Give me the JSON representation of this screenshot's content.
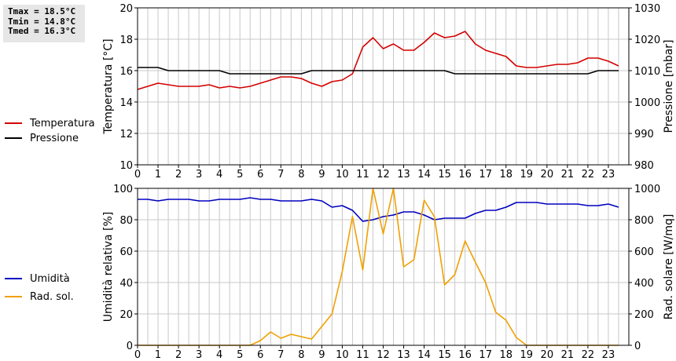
{
  "stats": {
    "tmax": "Tmax = 18.5°C",
    "tmin": "Tmin = 14.8°C",
    "tmed": "Tmed = 16.3°C"
  },
  "colors": {
    "temperature": "#d40000",
    "pressure": "#000000",
    "humidity": "#0000c0",
    "radiation": "#f0a000",
    "grid": "#c8c8c8"
  },
  "chart_data": [
    {
      "type": "line",
      "x_ticks": [
        "0",
        "1",
        "2",
        "3",
        "4",
        "5",
        "6",
        "7",
        "8",
        "9",
        "10",
        "11",
        "12",
        "13",
        "14",
        "15",
        "16",
        "17",
        "18",
        "19",
        "20",
        "21",
        "22",
        "23"
      ],
      "xlim": [
        0,
        24
      ],
      "ylabel_left": "Temperatura [°C]",
      "ylabel_right": "Pressione [mbar]",
      "ylim_left": [
        10,
        20
      ],
      "yticks_left": [
        "10",
        "12",
        "14",
        "16",
        "18",
        "20"
      ],
      "ylim_right": [
        980,
        1030
      ],
      "yticks_right": [
        "980",
        "990",
        "1000",
        "1010",
        "1020",
        "1030"
      ],
      "grid": true,
      "legend": [
        "Temperatura",
        "Pressione"
      ],
      "series": [
        {
          "name": "Temperatura",
          "axis": "left",
          "color": "#d40000",
          "x": [
            0,
            0.5,
            1,
            1.5,
            2,
            2.5,
            3,
            3.5,
            4,
            4.5,
            5,
            5.5,
            6,
            6.5,
            7,
            7.5,
            8,
            8.5,
            9,
            9.5,
            10,
            10.5,
            11,
            11.5,
            12,
            12.5,
            13,
            13.5,
            14,
            14.5,
            15,
            15.5,
            16,
            16.5,
            17,
            17.5,
            18,
            18.5,
            19,
            19.5,
            20,
            20.5,
            21,
            21.5,
            22,
            22.5,
            23,
            23.5
          ],
          "values": [
            14.8,
            15.0,
            15.2,
            15.1,
            15.0,
            15.0,
            15.0,
            15.1,
            14.9,
            15.0,
            14.9,
            15.0,
            15.2,
            15.4,
            15.6,
            15.6,
            15.5,
            15.2,
            15.0,
            15.3,
            15.4,
            15.8,
            17.5,
            18.1,
            17.4,
            17.7,
            17.3,
            17.3,
            17.8,
            18.4,
            18.1,
            18.2,
            18.5,
            17.7,
            17.3,
            17.1,
            16.9,
            16.3,
            16.2,
            16.2,
            16.3,
            16.4,
            16.4,
            16.5,
            16.8,
            16.8,
            16.6,
            16.3
          ]
        },
        {
          "name": "Pressione",
          "axis": "right",
          "color": "#000000",
          "x": [
            0,
            1,
            1.5,
            4,
            4.5,
            8,
            8.5,
            15,
            15.5,
            22,
            22.5,
            23.5
          ],
          "values": [
            1011,
            1011,
            1010,
            1010,
            1009,
            1009,
            1010,
            1010,
            1009,
            1009,
            1010,
            1010
          ]
        }
      ]
    },
    {
      "type": "line",
      "x_ticks": [
        "0",
        "1",
        "2",
        "3",
        "4",
        "5",
        "6",
        "7",
        "8",
        "9",
        "10",
        "11",
        "12",
        "13",
        "14",
        "15",
        "16",
        "17",
        "18",
        "19",
        "20",
        "21",
        "22",
        "23"
      ],
      "xlim": [
        0,
        24
      ],
      "ylabel_left": "Umidità relativa [%]",
      "ylabel_right": "Rad. solare [W/mq]",
      "ylim_left": [
        0,
        100
      ],
      "yticks_left": [
        "0",
        "20",
        "40",
        "60",
        "80",
        "100"
      ],
      "ylim_right": [
        0,
        1000
      ],
      "yticks_right": [
        "0",
        "200",
        "400",
        "600",
        "800",
        "1000"
      ],
      "grid": true,
      "legend": [
        "Umidità",
        "Rad. sol."
      ],
      "series": [
        {
          "name": "Umidità",
          "axis": "left",
          "color": "#0000c0",
          "x": [
            0,
            0.5,
            1,
            1.5,
            2,
            2.5,
            3,
            3.5,
            4,
            4.5,
            5,
            5.5,
            6,
            6.5,
            7,
            7.5,
            8,
            8.5,
            9,
            9.5,
            10,
            10.5,
            11,
            11.5,
            12,
            12.5,
            13,
            13.5,
            14,
            14.5,
            15,
            15.5,
            16,
            16.5,
            17,
            17.5,
            18,
            18.5,
            19,
            19.5,
            20,
            20.5,
            21,
            21.5,
            22,
            22.5,
            23,
            23.5
          ],
          "values": [
            93,
            93,
            92,
            93,
            93,
            93,
            92,
            92,
            93,
            93,
            93,
            94,
            93,
            93,
            92,
            92,
            92,
            93,
            92,
            88,
            89,
            86,
            79,
            80,
            82,
            83,
            85,
            85,
            83,
            80,
            81,
            81,
            81,
            84,
            86,
            86,
            88,
            91,
            91,
            91,
            90,
            90,
            90,
            90,
            89,
            89,
            90,
            88
          ]
        },
        {
          "name": "Rad. sol.",
          "axis": "right",
          "color": "#f0a000",
          "x": [
            0,
            0.5,
            1,
            1.5,
            2,
            2.5,
            3,
            3.5,
            4,
            4.5,
            5,
            5.5,
            6,
            6.5,
            7,
            7.5,
            8,
            8.5,
            9,
            9.5,
            10,
            10.5,
            11,
            11.5,
            12,
            12.5,
            13,
            13.5,
            14,
            14.5,
            15,
            15.5,
            16,
            16.5,
            17,
            17.5,
            18,
            18.5,
            19,
            19.5,
            20,
            20.5,
            21,
            21.5,
            22,
            22.5,
            23,
            23.5
          ],
          "values": [
            0,
            0,
            0,
            0,
            0,
            0,
            0,
            0,
            0,
            0,
            0,
            0,
            30,
            85,
            45,
            70,
            55,
            40,
            120,
            200,
            470,
            820,
            480,
            1010,
            710,
            1010,
            500,
            545,
            925,
            820,
            385,
            450,
            665,
            530,
            400,
            210,
            160,
            50,
            0,
            0,
            0,
            0,
            0,
            0,
            0,
            0,
            0,
            0
          ]
        }
      ]
    }
  ]
}
